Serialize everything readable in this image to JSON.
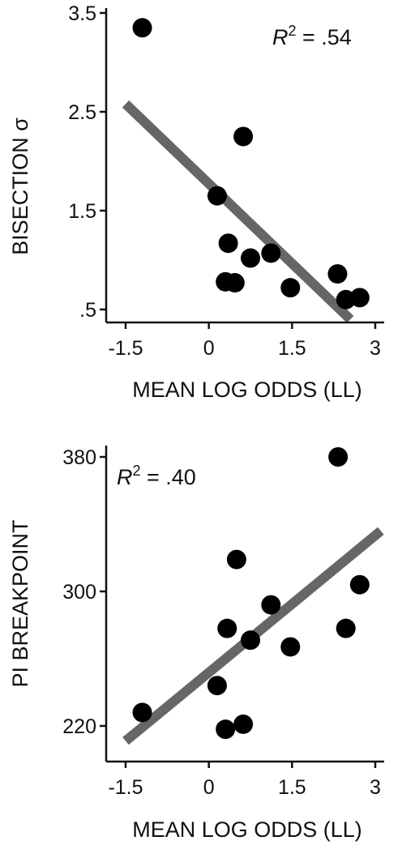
{
  "chart_data": [
    {
      "type": "scatter",
      "xlabel": "MEAN LOG ODDS (LL)",
      "ylabel": "BISECTION σ",
      "xticks": [
        "-1.5",
        "0",
        "1.5",
        "3"
      ],
      "xtick_values": [
        -1.5,
        0,
        1.5,
        3
      ],
      "yticks": [
        ".5",
        "1.5",
        "2.5",
        "3.5"
      ],
      "ytick_values": [
        0.5,
        1.5,
        2.5,
        3.5
      ],
      "xlim": [
        -1.5,
        3
      ],
      "ylim": [
        0.5,
        3.5
      ],
      "annotation": {
        "var": "R",
        "sup": "2",
        "rest": " = .54",
        "position": "top-right"
      },
      "points": [
        {
          "x": -1.2,
          "y": 3.35
        },
        {
          "x": 0.15,
          "y": 1.65
        },
        {
          "x": 0.35,
          "y": 1.17
        },
        {
          "x": 0.3,
          "y": 0.78
        },
        {
          "x": 0.47,
          "y": 0.77
        },
        {
          "x": 0.62,
          "y": 2.25
        },
        {
          "x": 0.75,
          "y": 1.02
        },
        {
          "x": 1.12,
          "y": 1.07
        },
        {
          "x": 1.47,
          "y": 0.72
        },
        {
          "x": 2.32,
          "y": 0.86
        },
        {
          "x": 2.47,
          "y": 0.6
        },
        {
          "x": 2.72,
          "y": 0.62
        }
      ],
      "fit_line": {
        "x": [
          -1.5,
          2.55
        ],
        "y": [
          2.58,
          0.4
        ],
        "color": "#666666"
      },
      "point_color": "#000000",
      "grid": false
    },
    {
      "type": "scatter",
      "xlabel": "MEAN LOG ODDS (LL)",
      "ylabel": "PI BREAKPOINT",
      "xticks": [
        "-1.5",
        "0",
        "1.5",
        "3"
      ],
      "xtick_values": [
        -1.5,
        0,
        1.5,
        3
      ],
      "yticks": [
        "220",
        "300",
        "380"
      ],
      "ytick_values": [
        220,
        300,
        380
      ],
      "xlim": [
        -1.5,
        3
      ],
      "ylim": [
        220,
        380
      ],
      "annotation": {
        "var": "R",
        "sup": "2",
        "rest": " = .40",
        "position": "top-left"
      },
      "points": [
        {
          "x": -1.2,
          "y": 228
        },
        {
          "x": 0.15,
          "y": 244
        },
        {
          "x": 0.3,
          "y": 218
        },
        {
          "x": 0.33,
          "y": 278
        },
        {
          "x": 0.5,
          "y": 319
        },
        {
          "x": 0.62,
          "y": 221
        },
        {
          "x": 0.75,
          "y": 271
        },
        {
          "x": 1.12,
          "y": 292
        },
        {
          "x": 1.47,
          "y": 267
        },
        {
          "x": 2.33,
          "y": 380
        },
        {
          "x": 2.47,
          "y": 278
        },
        {
          "x": 2.72,
          "y": 304
        }
      ],
      "fit_line": {
        "x": [
          -1.5,
          3.1
        ],
        "y": [
          211,
          336
        ],
        "color": "#666666"
      },
      "point_color": "#000000",
      "grid": false
    }
  ]
}
